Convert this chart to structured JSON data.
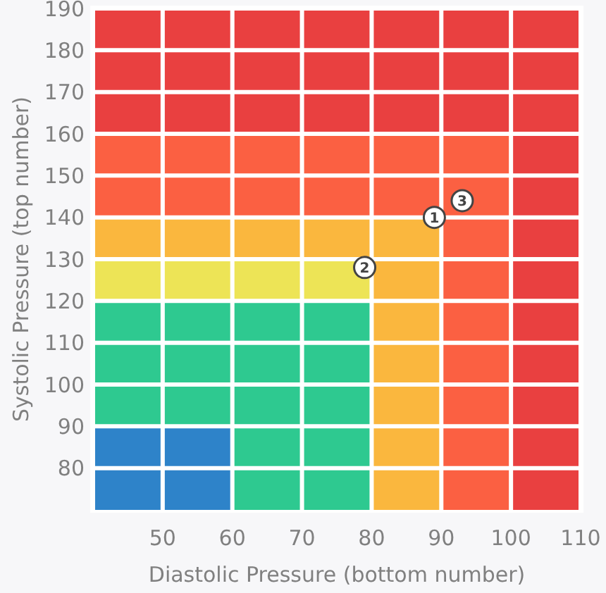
{
  "chart_data": {
    "type": "bar",
    "xlabel": "Diastolic Pressure (bottom number)",
    "ylabel": "Systolic Pressure (top number)",
    "xlim": [
      40,
      110
    ],
    "xticks": [
      50,
      60,
      70,
      80,
      90,
      100,
      110
    ],
    "ylim": [
      70,
      190
    ],
    "yticks": [
      80,
      90,
      100,
      110,
      120,
      130,
      140,
      150,
      160,
      170,
      180,
      190
    ],
    "grid": "y",
    "x": [
      45,
      55,
      65,
      75,
      85,
      95,
      105
    ],
    "series": [
      {
        "color": "#2e83c9",
        "base": [
          70,
          70,
          null,
          null,
          null,
          null,
          null
        ],
        "values": [
          20,
          20,
          null,
          null,
          null,
          null,
          null
        ]
      },
      {
        "color": "#2ec990",
        "base": [
          90,
          90,
          70,
          70,
          null,
          null,
          null
        ],
        "values": [
          30,
          30,
          50,
          50,
          null,
          null,
          null
        ]
      },
      {
        "color": "#ede456",
        "base": [
          120,
          120,
          120,
          120,
          null,
          null,
          null
        ],
        "values": [
          10,
          10,
          10,
          10,
          null,
          null,
          null
        ]
      },
      {
        "color": "#fab73e",
        "base": [
          130,
          130,
          130,
          130,
          70,
          null,
          null
        ],
        "values": [
          10,
          10,
          10,
          10,
          70,
          null,
          null
        ]
      },
      {
        "color": "#fb6042",
        "base": [
          140,
          140,
          140,
          140,
          140,
          70,
          null
        ],
        "values": [
          20,
          20,
          20,
          20,
          20,
          90,
          null
        ]
      },
      {
        "color": "#e94040",
        "base": [
          160,
          160,
          160,
          160,
          160,
          160,
          70
        ],
        "values": [
          30,
          30,
          30,
          30,
          30,
          30,
          120
        ]
      },
      {
        "type": "scatter",
        "color": "#ffffff",
        "x": [
          89,
          79,
          93
        ],
        "values": [
          140,
          128,
          144
        ]
      }
    ],
    "annotations": [
      {
        "text": "1",
        "x": 89,
        "y": 140
      },
      {
        "text": "2",
        "x": 79,
        "y": 128
      },
      {
        "text": "3",
        "x": 93,
        "y": 144
      }
    ]
  }
}
